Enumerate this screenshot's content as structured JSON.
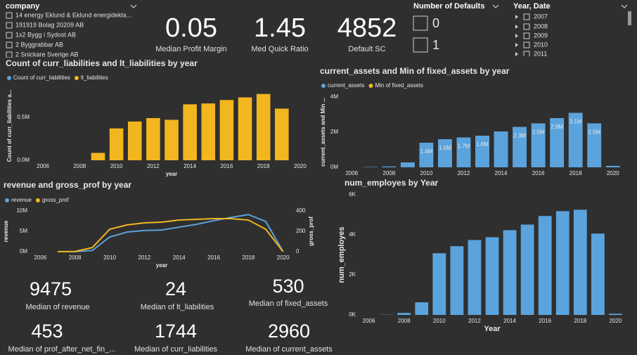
{
  "slicers": [
    {
      "title": "company",
      "items": [
        "14 energy Eklund & Eklund energidekla...",
        "191919 Bolag 20209 AB",
        "1x2 Bygg i Sydost AB",
        "2 Byggrabbar AB",
        "2 Snickare Sverige AB"
      ]
    },
    {
      "title": "Number of Defaults",
      "items": [
        "0",
        "1"
      ]
    },
    {
      "title": "Year, Date",
      "items": [
        "2007",
        "2008",
        "2009",
        "2010",
        "2011"
      ]
    }
  ],
  "cards": [
    {
      "value": 0.05,
      "label": "Median Profit Margin"
    },
    {
      "value": 1.45,
      "label": "Med Quick Ratio"
    },
    {
      "value": 4852,
      "label": "Default SC"
    },
    {
      "value": 9475,
      "label": "Median of revenue"
    },
    {
      "value": 24,
      "label": "Median of lt_liabilities"
    },
    {
      "value": 530,
      "label": "Median of fixed_assets"
    },
    {
      "value": 453,
      "label": "Median of prof_after_net_fin_..."
    },
    {
      "value": 1744,
      "label": "Median of curr_liabilities"
    },
    {
      "value": 2960,
      "label": "Median of current_assets"
    }
  ],
  "chart_data": [
    {
      "type": "bar",
      "title": "Count of curr_liabilities and lt_liabilities by year",
      "y_label": "Count of curr_liabilities a...",
      "x_label": "year",
      "grid": false,
      "x": [
        2006,
        2007,
        2008,
        2009,
        2010,
        2011,
        2012,
        2013,
        2014,
        2015,
        2016,
        2017,
        2018,
        2019,
        2020
      ],
      "xlim": [
        2005.5,
        2020.5
      ],
      "xticks": [
        2006,
        2008,
        2010,
        2012,
        2014,
        2016,
        2018,
        2020
      ],
      "ylim": [
        0,
        800000
      ],
      "yticks": [
        {
          "value": 0,
          "label": "0.0M"
        },
        {
          "value": 500000,
          "label": "0.5M"
        }
      ],
      "series": [
        {
          "name": "Count of curr_liabilities",
          "color": "#5ba3dc",
          "values": [
            0,
            0,
            0,
            0,
            0,
            0,
            0,
            0,
            0,
            0,
            0,
            0,
            0,
            0,
            0
          ]
        },
        {
          "name": "lt_liabilities",
          "color": "#f2b61f",
          "values": [
            0,
            0,
            0,
            86000,
            370000,
            450000,
            490000,
            470000,
            650000,
            660000,
            700000,
            730000,
            770000,
            600000,
            0
          ]
        }
      ]
    },
    {
      "type": "bar",
      "title": "current_assets and Min of fixed_assets by year",
      "y_label": "current_assets and Min ...",
      "grid": false,
      "x": [
        2006,
        2007,
        2008,
        2009,
        2010,
        2011,
        2012,
        2013,
        2014,
        2015,
        2016,
        2017,
        2018,
        2019,
        2020
      ],
      "xlim": [
        2005.5,
        2020.5
      ],
      "xticks": [
        2006,
        2008,
        2010,
        2012,
        2014,
        2016,
        2018,
        2020
      ],
      "ylim": [
        0,
        4000000
      ],
      "yticks": [
        {
          "value": 0,
          "label": "0M"
        },
        {
          "value": 2000000,
          "label": "2M"
        },
        {
          "value": 4000000,
          "label": "4M"
        }
      ],
      "series": [
        {
          "name": "current_assets",
          "color": "#5ba3dc",
          "values": [
            0,
            20000,
            50000,
            280000,
            1400000,
            1600000,
            1700000,
            1800000,
            2040000,
            2300000,
            2500000,
            2800000,
            3100000,
            2500000,
            80000
          ],
          "value_labels": [
            null,
            null,
            null,
            null,
            "1.4M",
            "1.6M",
            "1.7M",
            "1.8M",
            null,
            "2.3M",
            "2.5M",
            "2.8M",
            "3.1M",
            "2.5M",
            null
          ]
        },
        {
          "name": "Min of fixed_assets",
          "color": "#f2b61f",
          "values": [
            0,
            0,
            0,
            0,
            0,
            0,
            0,
            0,
            0,
            0,
            0,
            0,
            0,
            0,
            0
          ]
        }
      ]
    },
    {
      "type": "line",
      "title": "revenue and gross_prof by year",
      "y_label": "revenue",
      "y2_label": "gross_prof",
      "x_label": "year",
      "grid": false,
      "x": [
        2006,
        2007,
        2008,
        2009,
        2010,
        2011,
        2012,
        2013,
        2014,
        2015,
        2016,
        2017,
        2018,
        2019,
        2020
      ],
      "xlim": [
        2005.5,
        2020.5
      ],
      "xticks": [
        2006,
        2008,
        2010,
        2012,
        2014,
        2016,
        2018,
        2020
      ],
      "ylim": [
        0,
        10000000
      ],
      "yticks": [
        {
          "value": 0,
          "label": "0M"
        },
        {
          "value": 5000000,
          "label": "5M"
        },
        {
          "value": 10000000,
          "label": "10M"
        }
      ],
      "y2lim": [
        0,
        400
      ],
      "y2ticks": [
        0,
        200,
        400
      ],
      "series": [
        {
          "name": "revenue",
          "color": "#5ba3dc",
          "values": [
            null,
            0,
            0,
            300000,
            3600000,
            4800000,
            5200000,
            5300000,
            6000000,
            6700000,
            7600000,
            8400000,
            9100000,
            7400000,
            0
          ]
        },
        {
          "name": "gross_prof",
          "color": "#f2b61f",
          "axis": "y2",
          "values": [
            null,
            0,
            2,
            40,
            220,
            262,
            283,
            290,
            310,
            317,
            324,
            324,
            310,
            220,
            0
          ]
        }
      ]
    },
    {
      "type": "bar",
      "title": "num_employes by Year",
      "y_label": "num_employes",
      "x_label": "Year",
      "grid": false,
      "x": [
        2006,
        2007,
        2008,
        2009,
        2010,
        2011,
        2012,
        2013,
        2014,
        2015,
        2016,
        2017,
        2018,
        2019,
        2020
      ],
      "xlim": [
        2005.5,
        2020.5
      ],
      "xticks": [
        2006,
        2008,
        2010,
        2012,
        2014,
        2016,
        2018,
        2020
      ],
      "ylim": [
        0,
        6000
      ],
      "yticks": [
        {
          "value": 0,
          "label": "0K"
        },
        {
          "value": 2000,
          "label": "2K"
        },
        {
          "value": 4000,
          "label": "4K"
        },
        {
          "value": 6000,
          "label": "6K"
        }
      ],
      "series": [
        {
          "name": "num_employes",
          "color": "#5ba3dc",
          "values": [
            0,
            10,
            100,
            630,
            3080,
            3430,
            3740,
            3880,
            4230,
            4510,
            4940,
            5180,
            5250,
            4060,
            60
          ]
        }
      ]
    }
  ]
}
